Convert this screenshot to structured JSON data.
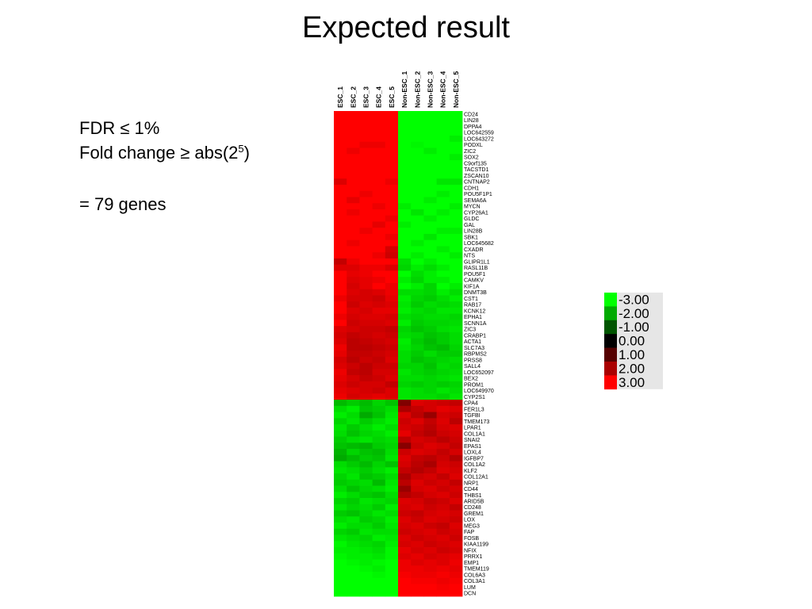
{
  "slide": {
    "title": "Expected result",
    "criteria": {
      "fdr": "FDR ≤ 1%",
      "fold_change_prefix": "Fold change ≥ abs(2",
      "fold_change_exponent": "5",
      "fold_change_suffix": ")",
      "gene_count": "= 79 genes"
    }
  },
  "chart_data": {
    "type": "heatmap",
    "columns": [
      "ESC_1",
      "ESC_2",
      "ESC_3",
      "ESC_4",
      "ESC_5",
      "Non-ESC_1",
      "Non-ESC_2",
      "Non-ESC_3",
      "Non-ESC_4",
      "Non-ESC_5"
    ],
    "rows": [
      "CD24",
      "LIN28",
      "DPPA4",
      "LOC642559",
      "LOC643272",
      "PODXL",
      "ZIC2",
      "SOX2",
      "C9orf135",
      "TACSTD1",
      "ZSCAN10",
      "CNTNAP2",
      "CDH1",
      "POU5F1P1",
      "SEMA6A",
      "MYCN",
      "CYP26A1",
      "GLDC",
      "GAL",
      "LIN28B",
      "SBK1",
      "LOC645682",
      "CXADR",
      "NTS",
      "GLIPR1L1",
      "RASL11B",
      "POU5F1",
      "CAMKV",
      "KIF1A",
      "DNMT3B",
      "CST1",
      "RAB17",
      "KCNK12",
      "EPHA1",
      "SCNN1A",
      "ZIC3",
      "CRABP1",
      "ACTA1",
      "SLC7A3",
      "RBPMS2",
      "PRSS8",
      "SALL4",
      "LOC652097",
      "BEX2",
      "PROM1",
      "LOC649970",
      "CYP2S1",
      "CPA4",
      "FER1L3",
      "TGFBI",
      "TMEM173",
      "LPAR1",
      "COL1A1",
      "SNAI2",
      "EPAS1",
      "LOXL4",
      "IGFBP7",
      "COL1A2",
      "KLF2",
      "COL12A1",
      "NRP1",
      "CD44",
      "THBS1",
      "ARID5B",
      "CD248",
      "GREM1",
      "LOX",
      "MEG3",
      "FAP",
      "FOSB",
      "KIAA1199",
      "NFIX",
      "PRRX1",
      "EMP1",
      "TMEM119",
      "COL6A3",
      "COL3A1",
      "LUM",
      "DCN"
    ],
    "color_scale": {
      "ticks": [
        "-3.00",
        "-2.00",
        "-1.00",
        "0.00",
        "1.00",
        "2.00",
        "3.00"
      ],
      "colors": [
        "#00ff00",
        "#00aa00",
        "#005500",
        "#000000",
        "#550000",
        "#aa0000",
        "#ff0000"
      ]
    },
    "values": [
      [
        3,
        3,
        3,
        3,
        3,
        -3,
        -3,
        -3,
        -3,
        -3
      ],
      [
        3,
        3,
        3,
        3,
        3,
        -3,
        -3,
        -3,
        -3,
        -3
      ],
      [
        3,
        3,
        3,
        3,
        3,
        -3,
        -3,
        -3,
        -3,
        -3
      ],
      [
        3,
        3,
        3,
        3,
        3,
        -3,
        -3,
        -3,
        -3,
        -3
      ],
      [
        3,
        3,
        3,
        3,
        3,
        -3,
        -3,
        -3,
        -3,
        -2.8
      ],
      [
        3,
        3,
        2.8,
        2.8,
        3,
        -3,
        -2.9,
        -3,
        -3,
        -3
      ],
      [
        3,
        2.8,
        3,
        3,
        3,
        -3,
        -3,
        -2.8,
        -3,
        -3
      ],
      [
        3,
        3,
        3,
        3,
        3,
        -3,
        -3,
        -3,
        -3,
        -2.8
      ],
      [
        3,
        3,
        3,
        3,
        3,
        -3,
        -3,
        -3,
        -3,
        -3
      ],
      [
        3,
        3,
        3,
        3,
        3,
        -3,
        -3,
        -3,
        -3,
        -3
      ],
      [
        3,
        3,
        3,
        3,
        3,
        -3,
        -3,
        -3,
        -3,
        -3
      ],
      [
        2.6,
        3,
        3,
        3,
        2.8,
        -3,
        -3,
        -3,
        -2.7,
        -2.7
      ],
      [
        3,
        3,
        3,
        3,
        3,
        -3,
        -3,
        -3,
        -3,
        -3
      ],
      [
        3,
        3,
        2.8,
        3,
        3,
        -3,
        -3,
        -3,
        -2.8,
        -3
      ],
      [
        3,
        2.7,
        3,
        3,
        3,
        -3,
        -3,
        -2.8,
        -3,
        -3
      ],
      [
        3,
        3,
        3,
        2.8,
        3,
        -2.8,
        -3,
        -3,
        -3,
        -2.8
      ],
      [
        3,
        2.8,
        3,
        3,
        3,
        -3,
        -2.7,
        -3,
        -2.8,
        -3
      ],
      [
        3,
        3,
        3,
        3,
        2.8,
        -3,
        -3,
        -2.8,
        -3,
        -3
      ],
      [
        3,
        3,
        3,
        2.7,
        3,
        -2.8,
        -3,
        -3,
        -3,
        -3
      ],
      [
        3,
        3,
        2.8,
        3,
        3,
        -3,
        -3,
        -3,
        -2.8,
        -2.8
      ],
      [
        3,
        3,
        3,
        3,
        2.8,
        -3,
        -3,
        -2.7,
        -3,
        -3
      ],
      [
        3,
        2.8,
        3,
        3,
        3,
        -3,
        -2.8,
        -3,
        -3,
        -3
      ],
      [
        3,
        3,
        3,
        3,
        2.5,
        -3,
        -3,
        -3,
        -2.8,
        -3
      ],
      [
        3,
        3,
        3,
        2.8,
        2.4,
        -3,
        -2.8,
        -3,
        -3,
        -2.8
      ],
      [
        2.3,
        2.8,
        3,
        3,
        3,
        -2.6,
        -3,
        -2.8,
        -3,
        -3
      ],
      [
        2.6,
        2.6,
        2.8,
        2.8,
        2.6,
        -2.5,
        -2.8,
        -2.6,
        -2.8,
        -3
      ],
      [
        3,
        2.7,
        2.8,
        3,
        3,
        -3,
        -2.6,
        -2.8,
        -3,
        -3
      ],
      [
        3,
        2.6,
        2.7,
        2.8,
        3,
        -2.8,
        -2.5,
        -2.8,
        -2.8,
        -3
      ],
      [
        3,
        2.5,
        2.7,
        3,
        2.8,
        -3,
        -2.8,
        -2.5,
        -3,
        -2.8
      ],
      [
        3,
        2.6,
        2.5,
        2.6,
        2.8,
        -2.6,
        -2.6,
        -2.5,
        -2.8,
        -2.6
      ],
      [
        2.8,
        2.5,
        2.5,
        2.4,
        2.7,
        -2.8,
        -2.5,
        -2.4,
        -2.6,
        -2.8
      ],
      [
        3,
        2.4,
        2.6,
        2.5,
        2.6,
        -2.7,
        -2.4,
        -2.6,
        -2.5,
        -2.6
      ],
      [
        3,
        2.6,
        2.5,
        2.7,
        2.7,
        -2.8,
        -2.6,
        -2.5,
        -2.7,
        -2.7
      ],
      [
        2.8,
        2.5,
        2.6,
        2.6,
        2.5,
        -2.6,
        -2.5,
        -2.6,
        -2.6,
        -2.5
      ],
      [
        3,
        2.4,
        2.5,
        2.5,
        2.6,
        -2.8,
        -2.4,
        -2.5,
        -2.5,
        -2.6
      ],
      [
        2.6,
        2.5,
        2.4,
        2.4,
        2.3,
        -2.5,
        -2.3,
        -2.4,
        -2.6,
        -2.7
      ],
      [
        2.5,
        2.3,
        2.4,
        2.5,
        2.4,
        -2.6,
        -2.5,
        -2.3,
        -2.4,
        -2.6
      ],
      [
        2.6,
        2.2,
        2.3,
        2.4,
        2.5,
        -2.8,
        -2.4,
        -2.2,
        -2.4,
        -2.6
      ],
      [
        2.8,
        2.2,
        2.2,
        2.3,
        2.4,
        -2.7,
        -2.5,
        -2.3,
        -2.2,
        -2.5
      ],
      [
        2.7,
        2.3,
        2.3,
        2.4,
        2.5,
        -2.6,
        -2.4,
        -2.6,
        -2.4,
        -2.4
      ],
      [
        2.5,
        2.2,
        2.4,
        2.3,
        2.6,
        -2.6,
        -2.3,
        -2.4,
        -2.5,
        -2.6
      ],
      [
        2.6,
        2.4,
        2.2,
        2.4,
        2.4,
        -2.5,
        -2.5,
        -2.3,
        -2.6,
        -2.5
      ],
      [
        2.8,
        2.3,
        2.2,
        2.5,
        2.5,
        -2.7,
        -2.5,
        -2.4,
        -2.5,
        -2.6
      ],
      [
        2.7,
        2.5,
        2.3,
        2.4,
        2.6,
        -2.6,
        -2.6,
        -2.5,
        -2.6,
        -2.7
      ],
      [
        2.6,
        2.4,
        2.5,
        2.5,
        2.3,
        -2.5,
        -2.4,
        -2.5,
        -2.4,
        -2.5
      ],
      [
        2.7,
        2.6,
        2.5,
        2.4,
        2.6,
        -2.7,
        -2.6,
        -2.5,
        -2.7,
        -2.6
      ],
      [
        2.8,
        2.5,
        2.6,
        2.7,
        2.6,
        -2.7,
        -2.6,
        -2.6,
        -2.5,
        -2.7
      ],
      [
        -2.2,
        -2.4,
        -2.2,
        -2.5,
        -2.3,
        1.5,
        2.6,
        2.5,
        2.4,
        2.3
      ],
      [
        -2.6,
        -2.8,
        -2.3,
        -2.4,
        -2.6,
        2.0,
        2.3,
        2.5,
        2.7,
        2.6
      ],
      [
        -2.8,
        -2.6,
        -2.0,
        -2.3,
        -2.7,
        2.6,
        2.2,
        1.8,
        2.5,
        2.4
      ],
      [
        -2.5,
        -2.7,
        -2.4,
        -2.6,
        -2.8,
        2.4,
        2.6,
        2.3,
        2.6,
        2.2
      ],
      [
        -2.7,
        -2.4,
        -2.6,
        -2.8,
        -2.6,
        2.5,
        2.4,
        2.2,
        2.5,
        2.6
      ],
      [
        -2.6,
        -2.3,
        -2.5,
        -2.6,
        -2.8,
        2.7,
        2.3,
        2.1,
        2.4,
        2.5
      ],
      [
        -2.4,
        -2.6,
        -2.7,
        -2.5,
        -2.6,
        2.2,
        2.5,
        2.4,
        2.2,
        2.4
      ],
      [
        -2.3,
        -2.2,
        -2.1,
        -2.4,
        -2.5,
        1.6,
        2.4,
        2.6,
        2.5,
        2.3
      ],
      [
        -2.1,
        -2.5,
        -2.3,
        -2.2,
        -2.6,
        2.4,
        2.6,
        2.5,
        2.3,
        2.5
      ],
      [
        -2.0,
        -2.2,
        -2.4,
        -2.3,
        -2.7,
        2.6,
        2.3,
        2.2,
        2.4,
        2.1
      ],
      [
        -2.6,
        -2.4,
        -2.2,
        -2.5,
        -2.3,
        2.5,
        2.2,
        2.0,
        2.5,
        2.4
      ],
      [
        -2.7,
        -2.6,
        -2.4,
        -2.6,
        -2.8,
        2.3,
        2.1,
        2.3,
        2.6,
        2.5
      ],
      [
        -2.5,
        -2.7,
        -2.3,
        -2.4,
        -2.6,
        2.0,
        2.4,
        2.5,
        2.3,
        2.6
      ],
      [
        -2.4,
        -2.5,
        -2.6,
        -2.2,
        -2.7,
        2.2,
        2.6,
        2.4,
        2.5,
        2.3
      ],
      [
        -2.6,
        -2.3,
        -2.5,
        -2.6,
        -2.8,
        1.8,
        2.5,
        2.6,
        2.4,
        2.5
      ],
      [
        -2.8,
        -2.6,
        -2.4,
        -2.3,
        -2.6,
        2.1,
        2.3,
        2.5,
        2.6,
        2.4
      ],
      [
        -2.5,
        -2.4,
        -2.7,
        -2.6,
        -2.5,
        2.6,
        2.5,
        2.3,
        2.4,
        2.6
      ],
      [
        -2.7,
        -2.5,
        -2.6,
        -2.4,
        -2.8,
        2.5,
        2.6,
        2.4,
        2.5,
        2.3
      ],
      [
        -2.4,
        -2.3,
        -2.5,
        -2.7,
        -2.6,
        2.4,
        2.3,
        2.5,
        2.6,
        2.5
      ],
      [
        -2.6,
        -2.7,
        -2.4,
        -2.5,
        -2.8,
        2.6,
        2.4,
        2.6,
        2.5,
        2.4
      ],
      [
        -2.8,
        -2.6,
        -2.6,
        -2.4,
        -2.7,
        2.5,
        2.6,
        2.4,
        2.3,
        2.6
      ],
      [
        -2.5,
        -2.4,
        -2.7,
        -2.6,
        -2.6,
        2.4,
        2.5,
        2.6,
        2.4,
        2.5
      ],
      [
        -2.7,
        -2.6,
        -2.5,
        -2.8,
        -2.7,
        2.6,
        2.4,
        2.5,
        2.6,
        2.4
      ],
      [
        -2.9,
        -2.7,
        -2.6,
        -2.5,
        -2.8,
        2.5,
        2.6,
        2.4,
        2.5,
        2.6
      ],
      [
        -2.8,
        -2.8,
        -2.7,
        -2.6,
        -2.9,
        2.7,
        2.5,
        2.6,
        2.4,
        2.5
      ],
      [
        -2.9,
        -2.8,
        -2.8,
        -2.7,
        -2.9,
        2.6,
        2.7,
        2.5,
        2.6,
        2.7
      ],
      [
        -3,
        -2.9,
        -2.8,
        -2.9,
        -3,
        2.8,
        2.6,
        2.7,
        2.6,
        2.8
      ],
      [
        -3,
        -3,
        -2.9,
        -2.8,
        -3,
        2.8,
        2.8,
        2.7,
        2.8,
        2.7
      ],
      [
        -3,
        -3,
        -3,
        -2.9,
        -3,
        2.9,
        2.8,
        2.8,
        2.9,
        2.8
      ],
      [
        -3,
        -3,
        -3,
        -3,
        -3,
        3,
        2.9,
        2.9,
        2.8,
        2.9
      ],
      [
        -3,
        -3,
        -3,
        -3,
        -3,
        3,
        3,
        3,
        2.9,
        3
      ],
      [
        -3,
        -3,
        -3,
        -3,
        -3,
        3,
        3,
        3,
        3,
        3
      ]
    ]
  }
}
